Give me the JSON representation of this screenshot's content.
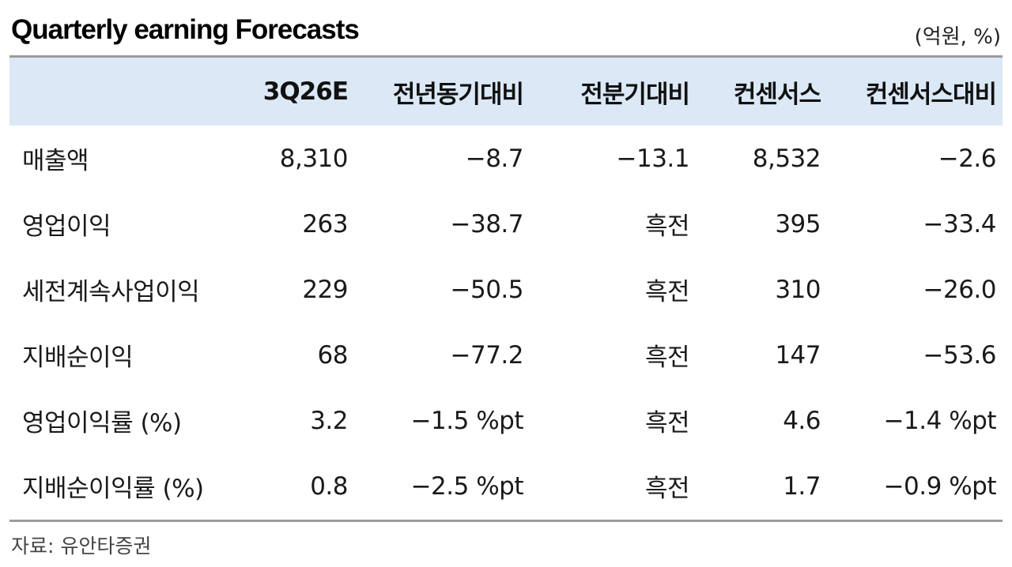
{
  "title": "Quarterly earning Forecasts",
  "unit": "(억원, %)",
  "table": {
    "headers": [
      "",
      "3Q26E",
      "전년동기대비",
      "전분기대비",
      "컨센서스",
      "컨센서스대비"
    ],
    "rows": [
      [
        "매출액",
        "8,310",
        "−8.7",
        "−13.1",
        "8,532",
        "−2.6"
      ],
      [
        "영업이익",
        "263",
        "−38.7",
        "흑전",
        "395",
        "−33.4"
      ],
      [
        "세전계속사업이익",
        "229",
        "−50.5",
        "흑전",
        "310",
        "−26.0"
      ],
      [
        "지배순이익",
        "68",
        "−77.2",
        "흑전",
        "147",
        "−53.6"
      ],
      [
        "영업이익률 (%)",
        "3.2",
        "−1.5 %pt",
        "흑전",
        "4.6",
        "−1.4 %pt"
      ],
      [
        "지배순이익률 (%)",
        "0.8",
        "−2.5 %pt",
        "흑전",
        "1.7",
        "−0.9 %pt"
      ]
    ]
  },
  "source": "자료: 유안타증권"
}
